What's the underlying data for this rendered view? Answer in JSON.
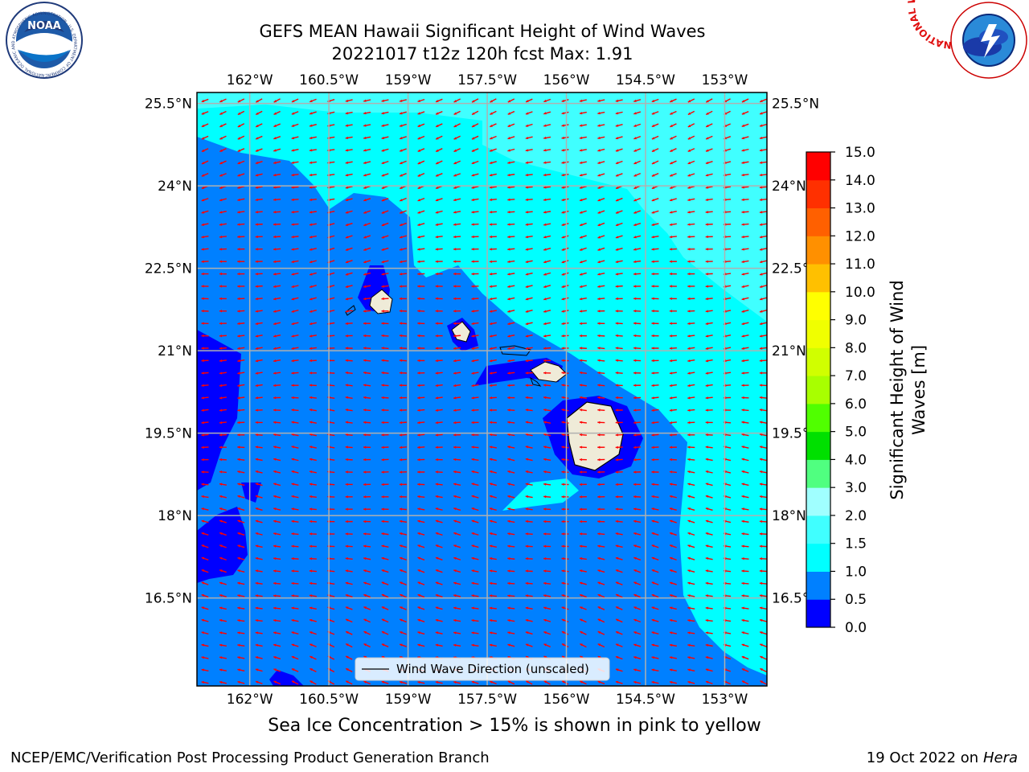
{
  "title": {
    "line1": "GEFS MEAN Hawaii Significant Height of Wind Waves",
    "line2": "20221017 t12z 120h fcst   Max: 1.91"
  },
  "logos": {
    "left": {
      "icon": "noaa-logo-icon",
      "text": "NOAA",
      "ring_text": "NATIONAL OCEANIC AND ATMOSPHERIC ADMINISTRATION · U.S. DEPARTMENT OF COMMERCE"
    },
    "right": {
      "icon": "nws-logo-icon",
      "ring_text": "NATIONAL WEATHER SERVICE"
    }
  },
  "map": {
    "lon_range": [
      -163.0,
      -152.2
    ],
    "lat_range": [
      14.9,
      25.7
    ],
    "lon_ticks": [
      "162°W",
      "160.5°W",
      "159°W",
      "157.5°W",
      "156°W",
      "154.5°W",
      "153°W"
    ],
    "lon_values": [
      -162.0,
      -160.5,
      -159.0,
      -157.5,
      -156.0,
      -154.5,
      -153.0
    ],
    "lat_ticks": [
      "25.5°N",
      "24°N",
      "22.5°N",
      "21°N",
      "19.5°N",
      "18°N",
      "16.5°N"
    ],
    "lat_values": [
      25.5,
      24.0,
      22.5,
      21.0,
      19.5,
      18.0,
      16.5
    ],
    "grid": true,
    "legend_label": "Wind Wave Direction (unscaled)",
    "legend_position": "bottom-center",
    "arrow_color": "#ff0000"
  },
  "colorbar": {
    "label_line1": "Significant Height of Wind",
    "label_line2": "Waves [m]",
    "levels": [
      "0.0",
      "0.5",
      "1.0",
      "1.5",
      "2.0",
      "3.0",
      "4.0",
      "5.0",
      "6.0",
      "7.0",
      "8.0",
      "9.0",
      "10.0",
      "11.0",
      "12.0",
      "13.0",
      "14.0",
      "15.0"
    ],
    "colors": [
      "#0000ff",
      "#0080ff",
      "#00ffff",
      "#40ffff",
      "#a0ffff",
      "#50ff80",
      "#00e000",
      "#50ff00",
      "#a8ff00",
      "#d0ff00",
      "#f0ff00",
      "#ffff00",
      "#ffc000",
      "#ff9000",
      "#ff6000",
      "#ff3000",
      "#ff0000"
    ]
  },
  "note": "Sea Ice Concentration > 15% is shown in pink to yellow",
  "footer": {
    "left": "NCEP/EMC/Verification Post Processing Product Generation Branch",
    "right_prefix": "19 Oct 2022 on ",
    "right_host": "Hera"
  }
}
